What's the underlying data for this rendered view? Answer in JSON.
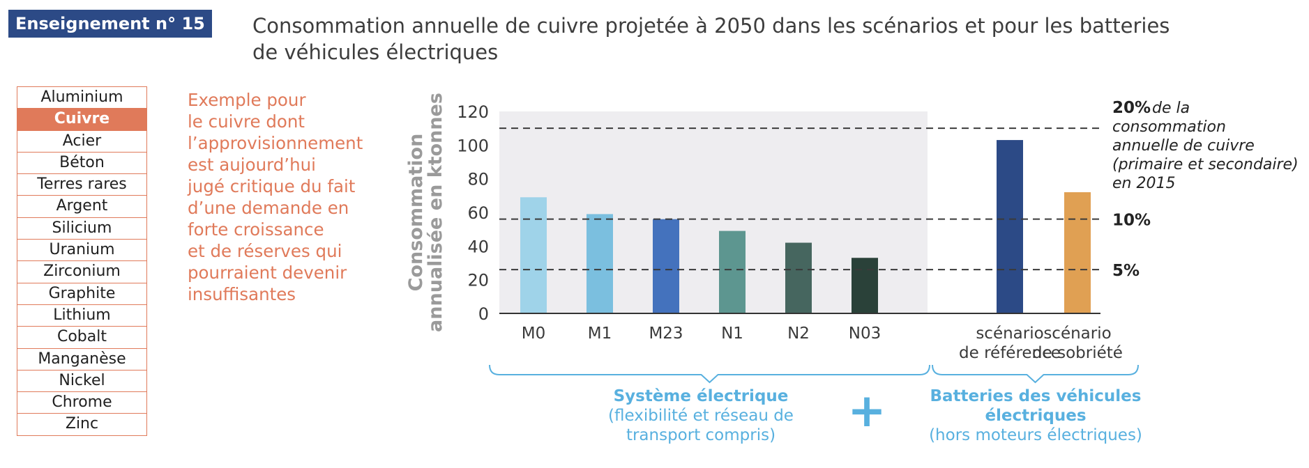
{
  "header": {
    "badge": "Enseignement n° 15",
    "title_line1": "Consommation annuelle de cuivre projetée à 2050 dans les scénarios et pour les batteries",
    "title_line2": "de véhicules électriques"
  },
  "materials": {
    "selected_index": 1,
    "items": [
      "Aluminium",
      "Cuivre",
      "Acier",
      "Béton",
      "Terres rares",
      "Argent",
      "Silicium",
      "Uranium",
      "Zirconium",
      "Graphite",
      "Lithium",
      "Cobalt",
      "Manganèse",
      "Nickel",
      "Chrome",
      "Zinc"
    ]
  },
  "note": {
    "lines": [
      "Exemple pour",
      "le cuivre dont",
      "l’approvisionnement",
      "est aujourd’hui",
      "jugé critique du fait",
      "d’une demande en",
      "forte croissance",
      "et de réserves qui",
      "pourraient devenir",
      "insuffisantes"
    ]
  },
  "colors": {
    "badge": "#2c4a86",
    "accent": "#e07a5a",
    "legend_blue": "#58b0df",
    "panel_bg": "#eeedf0"
  },
  "chart_data": {
    "type": "bar",
    "ylabel_line1": "Consommation",
    "ylabel_line2": "annualisée en ktonnes",
    "ylim": [
      0,
      120
    ],
    "yticks": [
      0,
      20,
      40,
      60,
      80,
      100,
      120
    ],
    "categories": [
      "M0",
      "M1",
      "M23",
      "N1",
      "N2",
      "N03",
      "scénario de référence",
      "scénario de sobriété"
    ],
    "category_lines": [
      [
        "M0"
      ],
      [
        "M1"
      ],
      [
        "M23"
      ],
      [
        "N1"
      ],
      [
        "N2"
      ],
      [
        "N03"
      ],
      [
        "scénario",
        "de référence"
      ],
      [
        "scénario",
        "de sobriété"
      ]
    ],
    "values": [
      69,
      59,
      56,
      49,
      42,
      33,
      103,
      72
    ],
    "bar_colors": [
      "#9fd3e9",
      "#7bbfdf",
      "#4472bd",
      "#5d9690",
      "#46665f",
      "#2a4139",
      "#2c4a86",
      "#e0a053"
    ],
    "reference_lines": [
      {
        "value": 110,
        "label_bold": "20%",
        "label_lines": [
          "de la",
          "consommation",
          "annuelle de cuivre",
          "(primaire et secondaire)",
          "en 2015"
        ]
      },
      {
        "value": 56,
        "label_bold": "10%",
        "label_lines": []
      },
      {
        "value": 26,
        "label_bold": "5%",
        "label_lines": []
      }
    ],
    "groups": [
      {
        "name": "Système électrique",
        "sub_lines": [
          "(flexibilité et réseau de",
          "transport compris)"
        ],
        "categories": [
          0,
          5
        ]
      },
      {
        "name_lines": [
          "Batteries des véhicules",
          "électriques"
        ],
        "sub_lines": [
          "(hors moteurs électriques)"
        ],
        "categories": [
          6,
          7
        ]
      }
    ],
    "plus_sign": "+",
    "grid": false
  }
}
